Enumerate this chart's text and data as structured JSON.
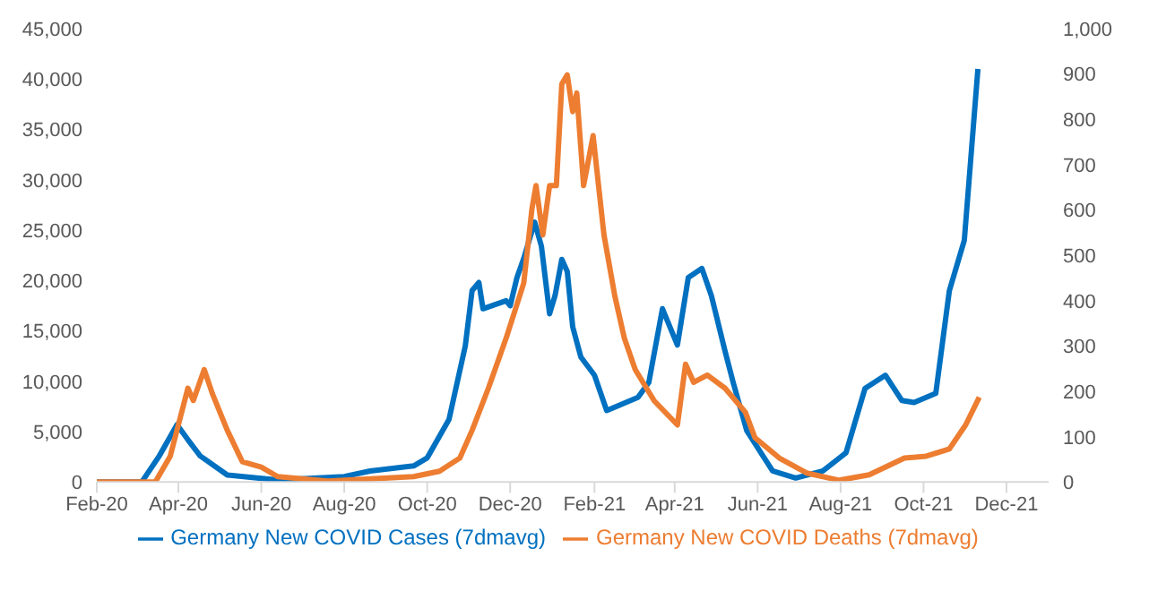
{
  "chart_data": {
    "type": "line",
    "xlim": [
      "2020-02-01",
      "2022-01-01"
    ],
    "xticks": [
      {
        "value": "2020-02-01",
        "label": "Feb-20"
      },
      {
        "value": "2020-04-01",
        "label": "Apr-20"
      },
      {
        "value": "2020-06-01",
        "label": "Jun-20"
      },
      {
        "value": "2020-08-01",
        "label": "Aug-20"
      },
      {
        "value": "2020-10-01",
        "label": "Oct-20"
      },
      {
        "value": "2020-12-01",
        "label": "Dec-20"
      },
      {
        "value": "2021-02-01",
        "label": "Feb-21"
      },
      {
        "value": "2021-04-01",
        "label": "Apr-21"
      },
      {
        "value": "2021-06-01",
        "label": "Jun-21"
      },
      {
        "value": "2021-08-01",
        "label": "Aug-21"
      },
      {
        "value": "2021-10-01",
        "label": "Oct-21"
      },
      {
        "value": "2021-12-01",
        "label": "Dec-21"
      }
    ],
    "ylim": [
      0,
      45000
    ],
    "yticks": [
      0,
      {
        "value": 5000,
        "label": "5,000"
      },
      {
        "value": 10000,
        "label": "10,000"
      },
      {
        "value": 15000,
        "label": "15,000"
      },
      {
        "value": 20000,
        "label": "20,000"
      },
      {
        "value": 25000,
        "label": "25,000"
      },
      {
        "value": 30000,
        "label": "30,000"
      },
      {
        "value": 35000,
        "label": "35,000"
      },
      {
        "value": 40000,
        "label": "40,000"
      },
      {
        "value": 45000,
        "label": "45,000"
      }
    ],
    "y2lim": [
      0,
      1000
    ],
    "y2ticks": [
      0,
      100,
      200,
      300,
      400,
      500,
      600,
      700,
      800,
      900,
      {
        "value": 1000,
        "label": "1,000"
      }
    ],
    "grid": false,
    "legend": "bottom",
    "marker": "none",
    "line_style": "solid",
    "series": [
      {
        "name": "Germany New COVID Cases (7dmavg)",
        "color": "#0070c0",
        "axis": "y",
        "x": [
          "2020-02-01",
          "2020-03-05",
          "2020-03-18",
          "2020-03-31",
          "2020-04-08",
          "2020-04-17",
          "2020-05-07",
          "2020-06-13",
          "2020-08-01",
          "2020-08-20",
          "2020-09-21",
          "2020-10-01",
          "2020-10-17",
          "2020-10-29",
          "2020-11-03",
          "2020-11-08",
          "2020-11-11",
          "2020-11-28",
          "2020-12-01",
          "2020-12-06",
          "2020-12-11",
          "2020-12-19",
          "2020-12-24",
          "2020-12-30",
          "2021-01-03",
          "2021-01-08",
          "2021-01-12",
          "2021-01-16",
          "2021-01-22",
          "2021-02-01",
          "2021-02-10",
          "2021-03-05",
          "2021-03-13",
          "2021-03-23",
          "2021-04-03",
          "2021-04-11",
          "2021-04-21",
          "2021-04-28",
          "2021-05-08",
          "2021-05-14",
          "2021-05-24",
          "2021-06-12",
          "2021-06-29",
          "2021-07-19",
          "2021-08-05",
          "2021-08-19",
          "2021-09-03",
          "2021-09-15",
          "2021-09-24",
          "2021-10-10",
          "2021-10-20",
          "2021-10-31",
          "2021-11-10"
        ],
        "values": [
          0,
          0,
          2600,
          5700,
          4200,
          2600,
          700,
          200,
          550,
          1100,
          1600,
          2400,
          6200,
          13500,
          19000,
          19800,
          17200,
          18000,
          17500,
          20300,
          22200,
          25800,
          23400,
          16700,
          18500,
          22100,
          20900,
          15400,
          12400,
          10600,
          7100,
          8400,
          9900,
          17200,
          13600,
          20300,
          21200,
          18500,
          13000,
          9900,
          5100,
          1100,
          400,
          1100,
          2900,
          9300,
          10600,
          8100,
          7900,
          8800,
          19000,
          24000,
          41000
        ]
      },
      {
        "name": "Germany New COVID Deaths (7dmavg)",
        "color": "#ed7d31",
        "axis": "y2",
        "x": [
          "2020-02-01",
          "2020-03-15",
          "2020-03-26",
          "2020-04-08",
          "2020-04-12",
          "2020-04-20",
          "2020-04-26",
          "2020-05-07",
          "2020-05-18",
          "2020-06-01",
          "2020-06-13",
          "2020-07-20",
          "2020-09-21",
          "2020-10-10",
          "2020-10-25",
          "2020-11-03",
          "2020-11-15",
          "2020-11-28",
          "2020-12-11",
          "2020-12-17",
          "2020-12-20",
          "2020-12-25",
          "2020-12-30",
          "2021-01-04",
          "2021-01-08",
          "2021-01-12",
          "2021-01-16",
          "2021-01-19",
          "2021-01-24",
          "2021-01-31",
          "2021-02-04",
          "2021-02-08",
          "2021-02-16",
          "2021-02-23",
          "2021-03-03",
          "2021-03-17",
          "2021-04-03",
          "2021-04-09",
          "2021-04-15",
          "2021-04-25",
          "2021-05-08",
          "2021-05-23",
          "2021-05-30",
          "2021-06-17",
          "2021-07-07",
          "2021-07-31",
          "2021-08-22",
          "2021-09-17",
          "2021-10-03",
          "2021-10-20",
          "2021-11-01",
          "2021-11-11"
        ],
        "values": [
          0,
          0,
          57,
          207,
          180,
          248,
          195,
          114,
          45,
          33,
          12,
          2,
          12,
          24,
          53,
          114,
          207,
          317,
          439,
          602,
          654,
          545,
          654,
          654,
          878,
          898,
          817,
          858,
          654,
          764,
          654,
          545,
          410,
          317,
          248,
          179,
          126,
          260,
          220,
          236,
          207,
          154,
          98,
          53,
          20,
          4,
          16,
          53,
          57,
          73,
          126,
          187
        ]
      }
    ]
  }
}
